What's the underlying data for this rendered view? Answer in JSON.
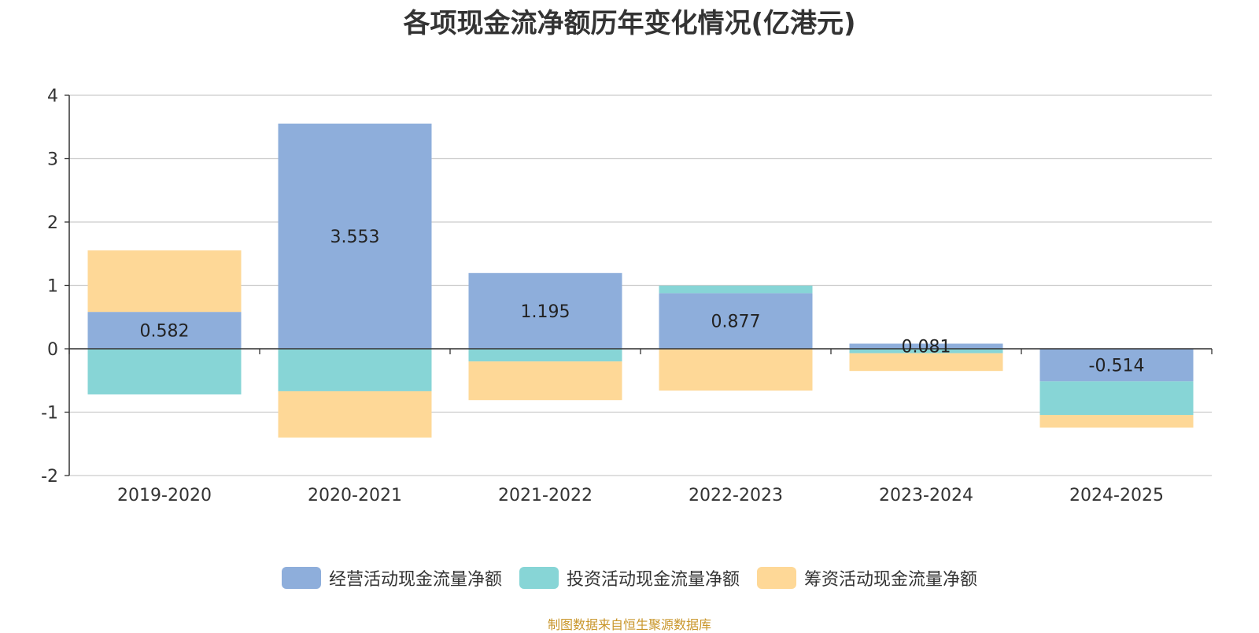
{
  "chart_data": {
    "type": "bar",
    "stacked": true,
    "title": "各项现金流净额历年变化情况(亿港元)",
    "categories": [
      "2019-2020",
      "2020-2021",
      "2021-2022",
      "2022-2023",
      "2023-2024",
      "2024-2025"
    ],
    "series": [
      {
        "name": "经营活动现金流量净额",
        "color": "#8eaedb",
        "values": [
          0.582,
          3.553,
          1.195,
          0.877,
          0.081,
          -0.514
        ],
        "labels": [
          "0.582",
          "3.553",
          "1.195",
          "0.877",
          "0.081",
          "-0.514"
        ]
      },
      {
        "name": "投资活动现金流量净额",
        "color": "#87d5d6",
        "values": [
          -0.72,
          -0.67,
          -0.2,
          0.12,
          -0.07,
          -0.53
        ]
      },
      {
        "name": "筹资活动现金流量净额",
        "color": "#fed897",
        "values": [
          0.97,
          -0.73,
          -0.61,
          -0.66,
          -0.28,
          -0.2
        ]
      }
    ],
    "ylim": [
      -2,
      4
    ],
    "yticks": [
      4,
      3,
      2,
      1,
      0,
      -1,
      -2
    ],
    "grid": true,
    "legend_position": "bottom"
  },
  "footer": {
    "source": "制图数据来自恒生聚源数据库"
  }
}
